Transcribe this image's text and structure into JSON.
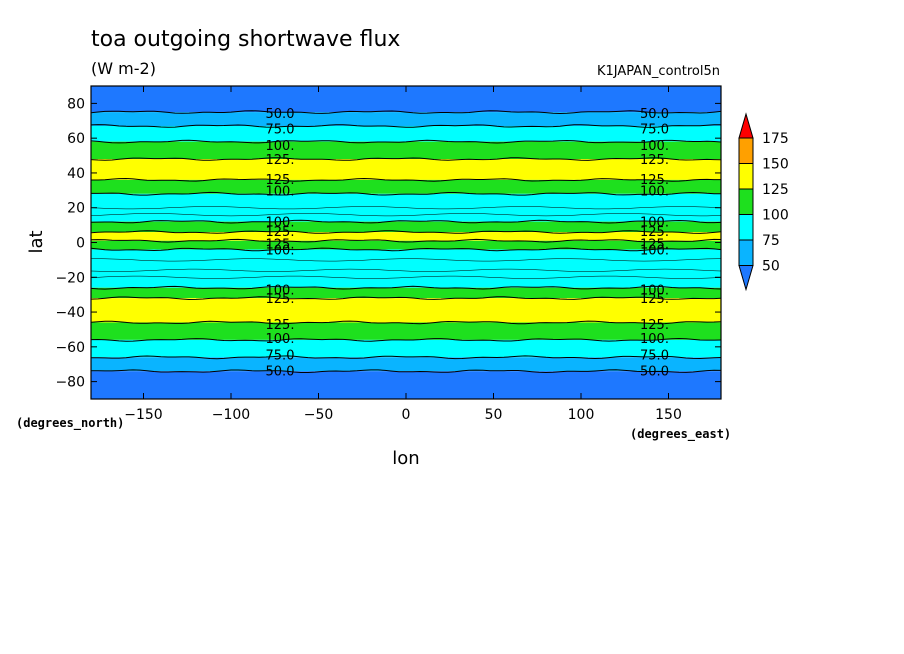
{
  "chart_data": {
    "type": "heatmap",
    "title": "toa outgoing shortwave flux",
    "units": "(W m-2)",
    "run_name": "K1JAPAN_control5n",
    "xlabel": "lon",
    "ylabel": "lat",
    "x_units": "(degrees_east)",
    "y_units": "(degrees_north)",
    "xlim": [
      -180,
      180
    ],
    "ylim": [
      -90,
      90
    ],
    "x_ticks": [
      -150,
      -100,
      -50,
      0,
      50,
      100,
      150
    ],
    "y_ticks": [
      80,
      60,
      40,
      20,
      0,
      -20,
      -40,
      -60,
      -80
    ],
    "levels": [
      50,
      75,
      100,
      125,
      150,
      175
    ],
    "colorbar_ticks": [
      "175",
      "150",
      "125",
      "100",
      "75",
      "50"
    ],
    "colors": {
      "below_50": "#1e78ff",
      "50_75": "#0ab4ff",
      "75_100": "#00ffff",
      "100_125": "#1ee01e",
      "125_150": "#ffff00",
      "150_175": "#ffa000",
      "above_175": "#ff0000"
    },
    "zonal_bands": [
      {
        "lat": [
          75,
          90
        ],
        "range": "<50"
      },
      {
        "lat": [
          67,
          75
        ],
        "range": "50-75"
      },
      {
        "lat": [
          58,
          67
        ],
        "range": "75-100"
      },
      {
        "lat": [
          48,
          58
        ],
        "range": "100-125"
      },
      {
        "lat": [
          36,
          48
        ],
        "range": "125-150"
      },
      {
        "lat": [
          28,
          36
        ],
        "range": "100-125"
      },
      {
        "lat": [
          12,
          28
        ],
        "range": "75-100"
      },
      {
        "lat": [
          6,
          12
        ],
        "range": "100-125"
      },
      {
        "lat": [
          1,
          6
        ],
        "range": "125-150"
      },
      {
        "lat": [
          -4,
          1
        ],
        "range": "100-125"
      },
      {
        "lat": [
          -26,
          -4
        ],
        "range": "75-100"
      },
      {
        "lat": [
          -32,
          -26
        ],
        "range": "100-125"
      },
      {
        "lat": [
          -46,
          -32
        ],
        "range": "125-150"
      },
      {
        "lat": [
          -56,
          -46
        ],
        "range": "100-125"
      },
      {
        "lat": [
          -66,
          -56
        ],
        "range": "75-100"
      },
      {
        "lat": [
          -74,
          -66
        ],
        "range": "50-75"
      },
      {
        "lat": [
          -90,
          -74
        ],
        "range": "<50"
      }
    ],
    "contour_labels": [
      {
        "text": "50.0",
        "lat": 74.5
      },
      {
        "text": "75.0",
        "lat": 65.5
      },
      {
        "text": "100.",
        "lat": 56.0
      },
      {
        "text": "125.",
        "lat": 48.0
      },
      {
        "text": "125.",
        "lat": 36.5
      },
      {
        "text": "100.",
        "lat": 30.0
      },
      {
        "text": "100.",
        "lat": 12.0
      },
      {
        "text": "125.",
        "lat": 6.5
      },
      {
        "text": "125.",
        "lat": -0.5
      },
      {
        "text": "100.",
        "lat": -4.0
      },
      {
        "text": "100.",
        "lat": -27.0
      },
      {
        "text": "125.",
        "lat": -32.0
      },
      {
        "text": "125.",
        "lat": -47.0
      },
      {
        "text": "100.",
        "lat": -55.0
      },
      {
        "text": "75.0",
        "lat": -64.5
      },
      {
        "text": "50.0",
        "lat": -73.5
      }
    ],
    "contour_label_lons": [
      -72,
      142
    ],
    "grid": false
  }
}
